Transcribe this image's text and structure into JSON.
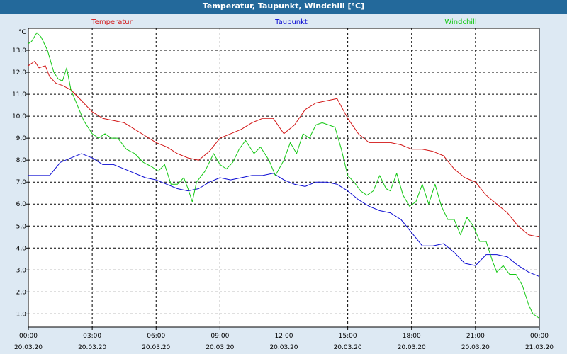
{
  "chart_data": {
    "type": "line",
    "title": "Temperatur, Taupunkt, Windchill [°C]",
    "ylabel": "°C",
    "ylim": [
      0.4,
      14.0
    ],
    "xlim": [
      0,
      24
    ],
    "grid": true,
    "legend_position": "top",
    "y_ticks": [
      "1,0",
      "2,0",
      "3,0",
      "4,0",
      "5,0",
      "6,0",
      "7,0",
      "8,0",
      "9,0",
      "10,0",
      "11,0",
      "12,0",
      "13,0"
    ],
    "y_tick_values": [
      1,
      2,
      3,
      4,
      5,
      6,
      7,
      8,
      9,
      10,
      11,
      12,
      13
    ],
    "x_ticks": [
      {
        "pos": 0,
        "time": "00:00",
        "date": "20.03.20"
      },
      {
        "pos": 3,
        "time": "03:00",
        "date": "20.03.20"
      },
      {
        "pos": 6,
        "time": "06:00",
        "date": "20.03.20"
      },
      {
        "pos": 9,
        "time": "09:00",
        "date": "20.03.20"
      },
      {
        "pos": 12,
        "time": "12:00",
        "date": "20.03.20"
      },
      {
        "pos": 15,
        "time": "15:00",
        "date": "20.03.20"
      },
      {
        "pos": 18,
        "time": "18:00",
        "date": "20.03.20"
      },
      {
        "pos": 21,
        "time": "21:00",
        "date": "20.03.20"
      },
      {
        "pos": 24,
        "time": "00:00",
        "date": "21.03.20"
      }
    ],
    "series": [
      {
        "name": "Temperatur",
        "color": "#d21414",
        "x": [
          0,
          0.3,
          0.5,
          0.8,
          1.0,
          1.3,
          1.6,
          2.0,
          2.5,
          3.0,
          3.5,
          4.0,
          4.5,
          5.0,
          5.5,
          6.0,
          6.5,
          7.0,
          7.5,
          8.0,
          8.5,
          9.0,
          9.5,
          10.0,
          10.5,
          11.0,
          11.5,
          12.0,
          12.5,
          13.0,
          13.5,
          14.0,
          14.5,
          15.0,
          15.5,
          16.0,
          16.5,
          17.0,
          17.5,
          18.0,
          18.5,
          19.0,
          19.5,
          20.0,
          20.5,
          21.0,
          21.5,
          22.0,
          22.5,
          23.0,
          23.5,
          24.0
        ],
        "y": [
          12.3,
          12.5,
          12.2,
          12.3,
          11.8,
          11.5,
          11.4,
          11.2,
          10.7,
          10.2,
          9.9,
          9.8,
          9.7,
          9.4,
          9.1,
          8.8,
          8.6,
          8.3,
          8.1,
          8.0,
          8.4,
          9.0,
          9.2,
          9.4,
          9.7,
          9.9,
          9.9,
          9.2,
          9.6,
          10.3,
          10.6,
          10.7,
          10.8,
          9.9,
          9.2,
          8.8,
          8.8,
          8.8,
          8.7,
          8.5,
          8.5,
          8.4,
          8.2,
          7.6,
          7.2,
          7.0,
          6.4,
          6.0,
          5.6,
          5.0,
          4.6,
          4.5
        ]
      },
      {
        "name": "Taupunkt",
        "color": "#0a0ad2",
        "x": [
          0,
          0.5,
          1.0,
          1.5,
          2.0,
          2.5,
          3.0,
          3.5,
          4.0,
          4.5,
          5.0,
          5.5,
          6.0,
          6.5,
          7.0,
          7.5,
          8.0,
          8.5,
          9.0,
          9.5,
          10.0,
          10.5,
          11.0,
          11.5,
          12.0,
          12.5,
          13.0,
          13.5,
          14.0,
          14.5,
          15.0,
          15.5,
          16.0,
          16.5,
          17.0,
          17.5,
          18.0,
          18.5,
          19.0,
          19.5,
          20.0,
          20.5,
          21.0,
          21.5,
          22.0,
          22.5,
          23.0,
          23.5,
          24.0
        ],
        "y": [
          7.3,
          7.3,
          7.3,
          7.9,
          8.1,
          8.3,
          8.1,
          7.8,
          7.8,
          7.6,
          7.4,
          7.2,
          7.1,
          6.9,
          6.7,
          6.6,
          6.7,
          7.0,
          7.2,
          7.1,
          7.2,
          7.3,
          7.3,
          7.4,
          7.1,
          6.9,
          6.8,
          7.0,
          7.0,
          6.9,
          6.6,
          6.2,
          5.9,
          5.7,
          5.6,
          5.3,
          4.7,
          4.1,
          4.1,
          4.2,
          3.8,
          3.3,
          3.2,
          3.7,
          3.7,
          3.6,
          3.2,
          2.9,
          2.7
        ]
      },
      {
        "name": "Windchill",
        "color": "#14c814",
        "x": [
          0,
          0.15,
          0.4,
          0.6,
          0.9,
          1.2,
          1.4,
          1.6,
          1.8,
          2.0,
          2.3,
          2.6,
          3.0,
          3.3,
          3.6,
          3.9,
          4.2,
          4.6,
          5.0,
          5.4,
          5.8,
          6.1,
          6.4,
          6.7,
          7.0,
          7.3,
          7.5,
          7.7,
          7.9,
          8.3,
          8.7,
          9.0,
          9.3,
          9.6,
          9.9,
          10.2,
          10.6,
          10.9,
          11.3,
          11.6,
          12.0,
          12.3,
          12.6,
          12.9,
          13.2,
          13.5,
          13.8,
          14.1,
          14.4,
          14.7,
          15.0,
          15.3,
          15.6,
          15.9,
          16.2,
          16.5,
          16.8,
          17.0,
          17.3,
          17.6,
          17.9,
          18.2,
          18.5,
          18.8,
          19.1,
          19.4,
          19.7,
          20.0,
          20.3,
          20.6,
          20.9,
          21.2,
          21.5,
          21.8,
          22.0,
          22.3,
          22.6,
          22.9,
          23.2,
          23.5,
          23.7,
          24.0
        ],
        "y": [
          13.3,
          13.4,
          13.8,
          13.6,
          13.0,
          12.0,
          11.7,
          11.6,
          12.2,
          11.2,
          10.5,
          9.8,
          9.2,
          9.0,
          9.2,
          9.0,
          9.0,
          8.5,
          8.3,
          7.9,
          7.7,
          7.5,
          7.8,
          6.9,
          6.9,
          7.2,
          6.7,
          6.1,
          7.0,
          7.5,
          8.3,
          7.8,
          7.6,
          7.9,
          8.5,
          8.9,
          8.3,
          8.6,
          8.0,
          7.3,
          8.0,
          8.8,
          8.3,
          9.2,
          9.0,
          9.6,
          9.7,
          9.6,
          9.5,
          8.5,
          7.3,
          7.0,
          6.6,
          6.4,
          6.6,
          7.3,
          6.7,
          6.6,
          7.4,
          6.4,
          5.9,
          6.1,
          6.9,
          6.0,
          6.9,
          5.9,
          5.3,
          5.3,
          4.6,
          5.4,
          5.0,
          4.3,
          4.3,
          3.4,
          2.9,
          3.2,
          2.8,
          2.8,
          2.3,
          1.4,
          1.0,
          0.8
        ]
      }
    ]
  }
}
